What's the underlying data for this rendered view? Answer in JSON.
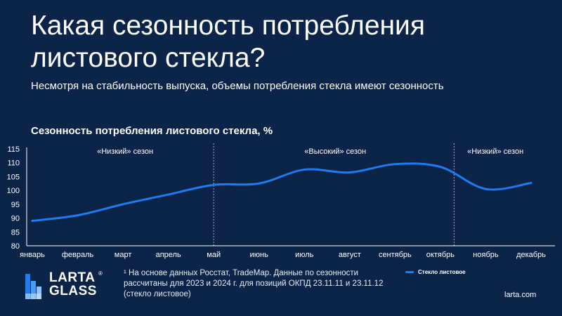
{
  "page": {
    "title": "Какая сезонность потребления листового стекла?",
    "subtitle": "Несмотря на стабильность выпуска, объемы потребления стекла имеют сезонность",
    "footnote": "¹ На основе данных Росстат, TradeMap. Данные по сезонности рассчитаны для 2023 и 2024 г. для позиций ОКПД 23.11.11 и 23.11.12 (стекло листовое)",
    "site": "larta.com"
  },
  "logo": {
    "line1": "LARTA",
    "line2": "GLASS",
    "mark": "®"
  },
  "colors": {
    "background": "#0b2447",
    "series": "#1e7bf0",
    "text": "#ffffff"
  },
  "chart_data": {
    "type": "line",
    "title": "Сезонность потребления листового стекла, %",
    "categories": [
      "январь",
      "февраль",
      "март",
      "апрель",
      "май",
      "июнь",
      "июль",
      "август",
      "сентябрь",
      "октябрь",
      "ноябрь",
      "декабрь"
    ],
    "series": [
      {
        "name": "Стекло листовое",
        "values": [
          89,
          91,
          95,
          98.5,
          102,
          102.5,
          107.5,
          106.5,
          109.5,
          108.5,
          100.5,
          102.7
        ]
      }
    ],
    "ylim": [
      80,
      115
    ],
    "yticks": [
      80,
      85,
      90,
      95,
      100,
      105,
      110,
      115
    ],
    "season_dividers": [
      "май",
      "ноябрь"
    ],
    "annotations": [
      "«Низкий» сезон",
      "«Высокий» сезон",
      "«Низкий» сезон"
    ],
    "legend": "bottom-right",
    "grid": false
  }
}
